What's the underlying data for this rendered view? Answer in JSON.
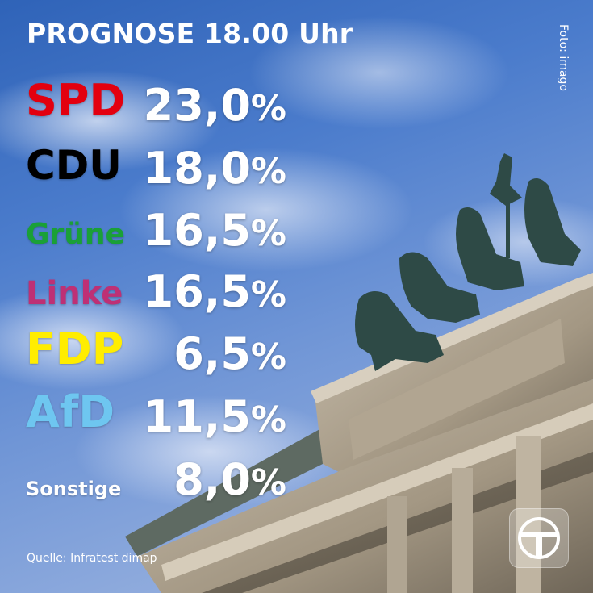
{
  "title": "PROGNOSE 18.00 Uhr",
  "photo_credit": "Foto: imago",
  "percent_sign": "%",
  "results": [
    {
      "party": "SPD",
      "value": "23,0",
      "color": "#e3000f"
    },
    {
      "party": "CDU",
      "value": "18,0",
      "color": "#000000"
    },
    {
      "party": "Grüne",
      "value": "16,5",
      "color": "#1aa037"
    },
    {
      "party": "Linke",
      "value": "16,5",
      "color": "#be3075"
    },
    {
      "party": "FDP",
      "value": "6,5",
      "color": "#ffed00"
    },
    {
      "party": "AfD",
      "value": "11,5",
      "color": "#6ec6f0"
    },
    {
      "party": "Sonstige",
      "value": "8,0",
      "color": "#ffffff"
    }
  ],
  "source": "Quelle: Infratest dimap",
  "logo": "tagesschau-logo-icon"
}
